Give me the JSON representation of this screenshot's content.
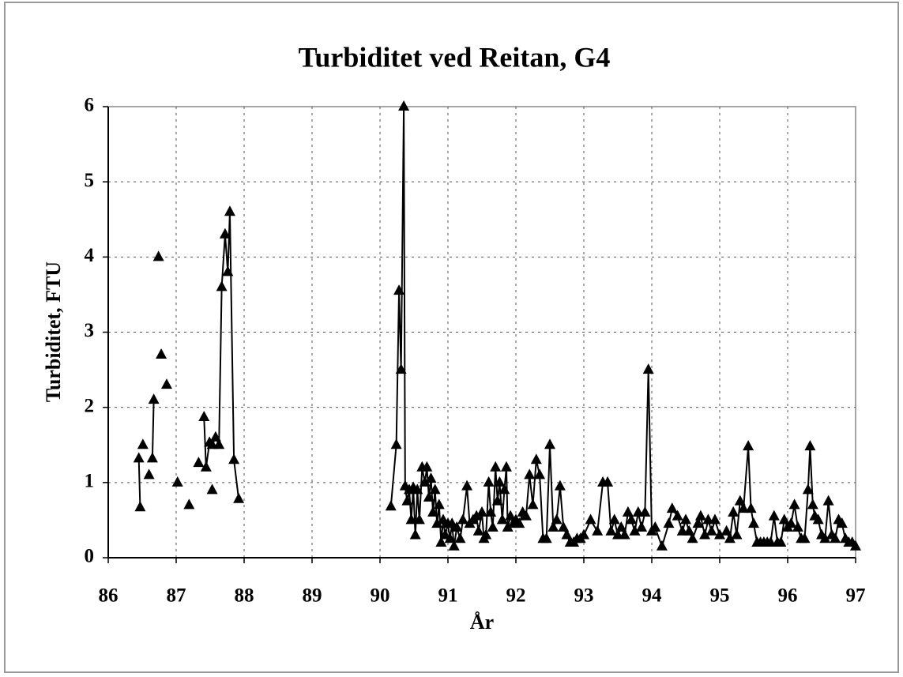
{
  "chart_data": {
    "type": "line",
    "title": "Turbiditet ved Reitan, G4",
    "xlabel": "År",
    "ylabel": "Turbiditet, FTU",
    "xlim": [
      86,
      97
    ],
    "xticks": [
      86,
      87,
      88,
      89,
      90,
      91,
      92,
      93,
      94,
      95,
      96,
      97
    ],
    "ylim": [
      0,
      6
    ],
    "yticks": [
      0,
      1,
      2,
      3,
      4,
      5,
      6
    ],
    "grid": true,
    "series": [
      {
        "color": "#000000",
        "x": [
          86.45,
          86.47,
          null,
          86.51,
          null,
          86.6,
          null,
          86.65,
          86.67,
          null,
          86.74,
          null,
          86.78,
          null,
          86.86,
          null,
          87.02,
          null,
          87.19,
          null,
          87.33,
          null,
          87.53,
          null,
          87.41,
          87.44,
          87.49,
          87.53,
          87.58,
          87.63,
          87.67,
          87.72,
          87.76,
          87.79,
          87.85,
          87.92,
          null,
          90.16,
          90.24,
          90.28,
          90.31,
          90.35,
          90.37,
          90.4,
          90.43,
          90.46,
          90.49,
          90.52,
          90.55,
          90.58,
          90.62,
          90.66,
          90.69,
          90.72,
          90.75,
          90.78,
          90.81,
          90.84,
          90.87,
          90.9,
          90.93,
          90.96,
          91.0,
          91.03,
          91.06,
          91.09,
          91.13,
          91.18,
          91.22,
          91.28,
          91.32,
          91.37,
          91.42,
          91.45,
          91.5,
          91.53,
          91.56,
          91.6,
          91.63,
          91.66,
          91.7,
          91.73,
          91.76,
          91.8,
          91.83,
          91.86,
          91.88,
          91.92,
          91.96,
          92.0,
          92.05,
          92.1,
          92.15,
          92.2,
          92.25,
          92.3,
          92.35,
          92.4,
          92.45,
          92.5,
          92.55,
          92.6,
          92.65,
          92.7,
          92.75,
          92.8,
          92.85,
          92.9,
          92.95,
          93.0,
          93.1,
          93.2,
          93.28,
          93.35,
          93.4,
          93.45,
          93.5,
          93.55,
          93.6,
          93.65,
          93.7,
          93.75,
          93.8,
          93.85,
          93.9,
          93.95,
          94.0,
          94.05,
          94.15,
          94.25,
          94.3,
          94.38,
          94.45,
          94.5,
          94.55,
          94.6,
          94.68,
          94.72,
          94.78,
          94.83,
          94.88,
          94.93,
          95.0,
          95.1,
          95.15,
          95.2,
          95.25,
          95.3,
          95.35,
          95.42,
          95.46,
          95.5,
          95.55,
          95.6,
          95.65,
          95.7,
          95.75,
          95.8,
          95.85,
          95.9,
          95.95,
          96.0,
          96.05,
          96.1,
          96.15,
          96.2,
          96.25,
          96.3,
          96.33,
          96.37,
          96.4,
          96.45,
          96.5,
          96.55,
          96.6,
          96.65,
          96.7,
          96.75,
          96.8,
          96.85,
          96.9,
          96.95,
          97.0
        ],
        "values": [
          1.32,
          0.67,
          null,
          1.5,
          null,
          1.1,
          null,
          1.32,
          2.1,
          null,
          4.0,
          null,
          2.7,
          null,
          2.3,
          null,
          1.0,
          null,
          0.7,
          null,
          1.26,
          null,
          0.9,
          null,
          1.87,
          1.2,
          1.53,
          1.5,
          1.6,
          1.5,
          3.6,
          4.3,
          3.8,
          4.6,
          1.3,
          0.78,
          null,
          0.68,
          1.5,
          3.55,
          2.5,
          6.0,
          0.95,
          0.75,
          0.9,
          0.5,
          0.93,
          0.3,
          0.9,
          0.5,
          1.2,
          1.0,
          1.2,
          0.8,
          1.05,
          0.6,
          0.9,
          0.45,
          0.7,
          0.2,
          0.5,
          0.3,
          0.45,
          0.25,
          0.45,
          0.15,
          0.4,
          0.25,
          0.5,
          0.95,
          0.45,
          0.5,
          0.55,
          0.35,
          0.6,
          0.25,
          0.3,
          1.0,
          0.6,
          0.4,
          1.2,
          0.75,
          1.0,
          0.5,
          0.9,
          1.2,
          0.4,
          0.55,
          0.45,
          0.5,
          0.45,
          0.6,
          0.55,
          1.1,
          0.7,
          1.3,
          1.1,
          0.25,
          0.25,
          1.5,
          0.4,
          0.5,
          0.95,
          0.4,
          0.3,
          0.2,
          0.2,
          0.25,
          0.25,
          0.3,
          0.5,
          0.35,
          1.0,
          1.0,
          0.35,
          0.5,
          0.3,
          0.4,
          0.3,
          0.6,
          0.5,
          0.35,
          0.6,
          0.4,
          0.6,
          2.5,
          0.35,
          0.4,
          0.15,
          0.45,
          0.65,
          0.55,
          0.35,
          0.5,
          0.35,
          0.25,
          0.45,
          0.55,
          0.3,
          0.5,
          0.35,
          0.5,
          0.3,
          0.35,
          0.25,
          0.6,
          0.3,
          0.75,
          0.65,
          1.48,
          0.65,
          0.45,
          0.2,
          0.2,
          0.2,
          0.2,
          0.2,
          0.55,
          0.2,
          0.2,
          0.5,
          0.4,
          0.45,
          0.7,
          0.4,
          0.25,
          0.25,
          0.9,
          1.48,
          0.7,
          0.55,
          0.5,
          0.3,
          0.25,
          0.75,
          0.3,
          0.25,
          0.5,
          0.45,
          0.25,
          0.2,
          0.2,
          0.15
        ]
      }
    ]
  }
}
